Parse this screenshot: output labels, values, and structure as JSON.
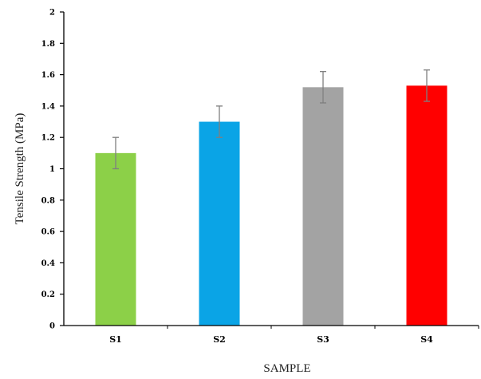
{
  "chart_data": {
    "type": "bar",
    "categories": [
      "S1",
      "S2",
      "S3",
      "S4"
    ],
    "values": [
      1.1,
      1.3,
      1.52,
      1.53
    ],
    "errors": [
      0.1,
      0.1,
      0.1,
      0.1
    ],
    "colors": [
      "#8cd048",
      "#0aa4e6",
      "#a3a3a3",
      "#ff0000"
    ],
    "error_bar_color": "#7f7f7f",
    "xlabel": "SAMPLE",
    "ylabel": "Tensile Strength (MPa)",
    "ylim": [
      0,
      2
    ],
    "yticks": [
      0,
      0.2,
      0.4,
      0.6,
      0.8,
      1,
      1.2,
      1.4,
      1.6,
      1.8,
      2
    ],
    "ytick_labels": [
      "0",
      "0.2",
      "0.4",
      "0.6",
      "0.8",
      "1",
      "1.2",
      "1.4",
      "1.6",
      "1.8",
      "2"
    ],
    "grid": false,
    "legend": "none"
  }
}
